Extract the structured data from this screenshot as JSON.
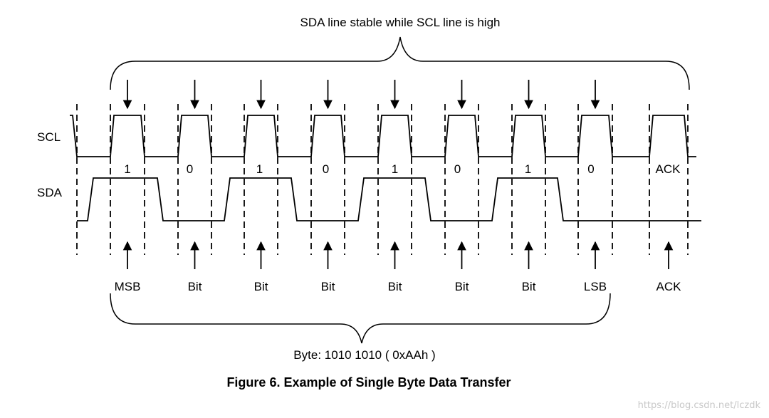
{
  "top_caption": "SDA line stable while SCL line is high",
  "scl_label": "SCL",
  "sda_label": "SDA",
  "bits": [
    {
      "value": "1",
      "name": "MSB"
    },
    {
      "value": "0",
      "name": "Bit"
    },
    {
      "value": "1",
      "name": "Bit"
    },
    {
      "value": "0",
      "name": "Bit"
    },
    {
      "value": "1",
      "name": "Bit"
    },
    {
      "value": "0",
      "name": "Bit"
    },
    {
      "value": "1",
      "name": "Bit"
    },
    {
      "value": "0",
      "name": "LSB"
    }
  ],
  "ack": {
    "value": "ACK",
    "name": "ACK"
  },
  "bottom_caption": "Byte: 1010 1010 ( 0xAAh )",
  "figure_title": "Figure 6. Example of Single Byte Data Transfer",
  "watermark": "https://blog.csdn.net/lczdk"
}
